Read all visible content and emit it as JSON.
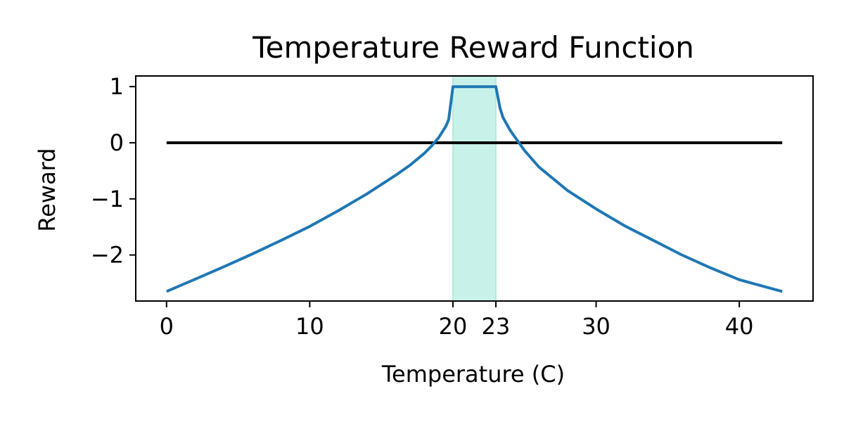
{
  "chart_data": {
    "type": "line",
    "title": "Temperature Reward Function",
    "xlabel": "Temperature (C)",
    "ylabel": "Reward",
    "xlim": [
      -2.15,
      45.15
    ],
    "ylim": [
      -2.82,
      1.19
    ],
    "x_ticks": [
      0,
      10,
      20,
      23,
      30,
      40
    ],
    "x_tick_labels": [
      "0",
      "10",
      "20",
      "23",
      "30",
      "40"
    ],
    "y_ticks": [
      1,
      0,
      -1,
      -2
    ],
    "y_tick_labels": [
      "1",
      "0",
      "−1",
      "−2"
    ],
    "grid": false,
    "legend": "none",
    "comfort_band": {
      "x_start": 20,
      "x_end": 23,
      "color": "#c8f1e9",
      "edge_color": "#a6e6d9"
    },
    "series": [
      {
        "color": "#1f77b4",
        "x": [
          0,
          2,
          4,
          6,
          8,
          10,
          12,
          14,
          16,
          17,
          18,
          18.5,
          19,
          19.5,
          19.7,
          20,
          23,
          23.3,
          23.5,
          24,
          25,
          26,
          28,
          30,
          32,
          34,
          36,
          38,
          40,
          43
        ],
        "y": [
          -2.65,
          -2.43,
          -2.21,
          -1.98,
          -1.74,
          -1.49,
          -1.21,
          -0.91,
          -0.58,
          -0.4,
          -0.19,
          -0.06,
          0.09,
          0.29,
          0.41,
          1.0,
          1.0,
          0.61,
          0.45,
          0.22,
          -0.14,
          -0.43,
          -0.85,
          -1.18,
          -1.48,
          -1.74,
          -2.0,
          -2.23,
          -2.44,
          -2.65
        ]
      },
      {
        "color": "#000000",
        "x": [
          0,
          43
        ],
        "y": [
          0,
          0
        ]
      }
    ]
  }
}
